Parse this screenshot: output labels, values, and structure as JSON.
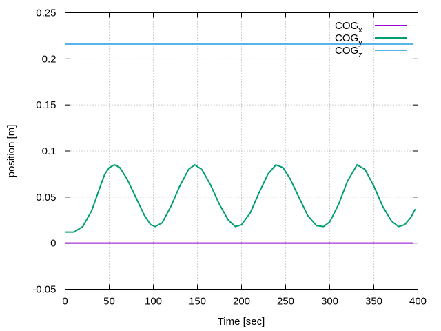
{
  "chart_data": {
    "type": "line",
    "title": "",
    "xlabel": "Time [sec]",
    "ylabel": "position [m]",
    "xlim": [
      0,
      400
    ],
    "ylim": [
      -0.05,
      0.25
    ],
    "xticks": [
      0,
      50,
      100,
      150,
      200,
      250,
      300,
      350,
      400
    ],
    "xtick_labels": [
      "0",
      "50",
      "100",
      "150",
      "200",
      "250",
      "300",
      "350",
      "400"
    ],
    "yticks": [
      -0.05,
      0,
      0.05,
      0.1,
      0.15,
      0.2,
      0.25
    ],
    "ytick_labels": [
      "-0.05",
      "0",
      "0.05",
      "0.1",
      "0.15",
      "0.2",
      "0.25"
    ],
    "grid": true,
    "legend_position": "top-right",
    "series": [
      {
        "name": "COG",
        "subscript": "x",
        "color": "#9400d3",
        "x": [
          0,
          50,
          100,
          150,
          200,
          250,
          300,
          350,
          395
        ],
        "y": [
          0,
          0,
          0,
          0,
          0,
          0,
          0,
          0,
          0
        ]
      },
      {
        "name": "COG",
        "subscript": "y",
        "color": "#009e73",
        "x": [
          0,
          10,
          20,
          30,
          40,
          45,
          50,
          56,
          62,
          70,
          80,
          90,
          97,
          102,
          110,
          120,
          130,
          140,
          147,
          155,
          165,
          175,
          185,
          193,
          200,
          210,
          220,
          230,
          239,
          247,
          255,
          265,
          275,
          285,
          293,
          300,
          310,
          320,
          331,
          340,
          350,
          360,
          370,
          378,
          385,
          392,
          397
        ],
        "y": [
          0.012,
          0.012,
          0.018,
          0.035,
          0.062,
          0.075,
          0.082,
          0.085,
          0.082,
          0.07,
          0.05,
          0.03,
          0.02,
          0.018,
          0.022,
          0.04,
          0.062,
          0.08,
          0.085,
          0.08,
          0.063,
          0.042,
          0.025,
          0.018,
          0.02,
          0.033,
          0.055,
          0.075,
          0.085,
          0.082,
          0.07,
          0.05,
          0.03,
          0.019,
          0.018,
          0.023,
          0.042,
          0.067,
          0.085,
          0.08,
          0.062,
          0.04,
          0.024,
          0.018,
          0.02,
          0.028,
          0.037
        ]
      },
      {
        "name": "COG",
        "subscript": "z",
        "color": "#56b4e9",
        "x": [
          0,
          50,
          100,
          150,
          200,
          250,
          300,
          350,
          395
        ],
        "y": [
          0.216,
          0.216,
          0.216,
          0.216,
          0.216,
          0.216,
          0.216,
          0.216,
          0.216
        ]
      }
    ]
  }
}
